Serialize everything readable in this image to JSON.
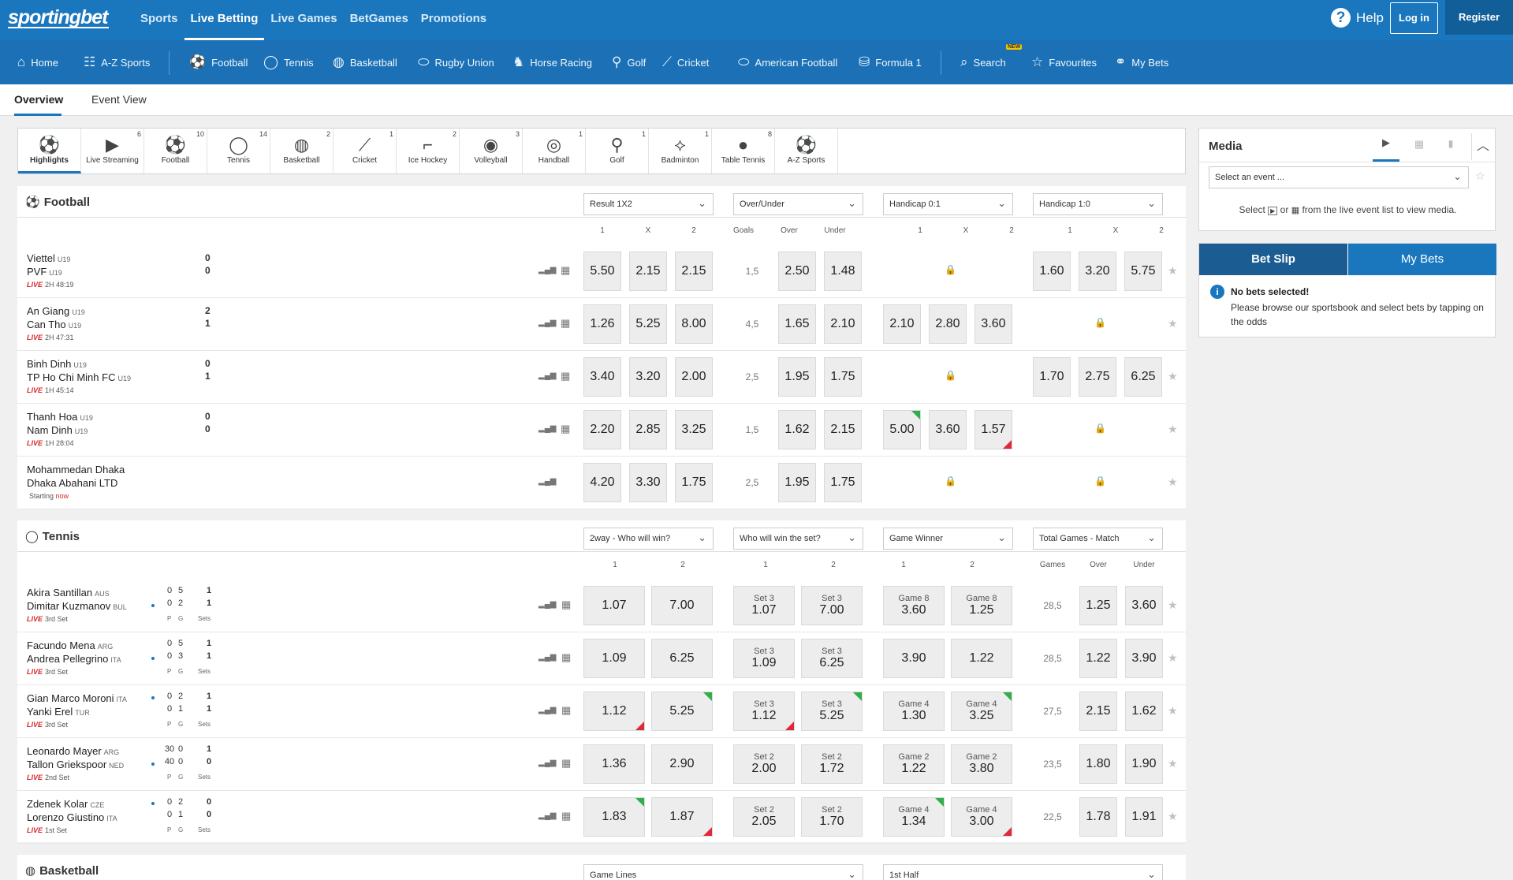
{
  "brand": "sportingbet",
  "topnav": [
    "Sports",
    "Live Betting",
    "Live Games",
    "BetGames",
    "Promotions"
  ],
  "header": {
    "help": "Help",
    "login": "Log in",
    "register": "Register"
  },
  "sportsbar": [
    {
      "label": "Home",
      "icon": "home-icon",
      "glyph": "⌂"
    },
    {
      "label": "A-Z Sports",
      "icon": "people-icon",
      "glyph": "☷"
    },
    {
      "label": "Football",
      "icon": "football-icon",
      "glyph": "⚽"
    },
    {
      "label": "Tennis",
      "icon": "tennis-icon",
      "glyph": "◯"
    },
    {
      "label": "Basketball",
      "icon": "basketball-icon",
      "glyph": "◍"
    },
    {
      "label": "Rugby Union",
      "icon": "rugby-icon",
      "glyph": "⬭"
    },
    {
      "label": "Horse Racing",
      "icon": "horse-icon",
      "glyph": "♞"
    },
    {
      "label": "Golf",
      "icon": "golf-icon",
      "glyph": "⚲"
    },
    {
      "label": "Cricket",
      "icon": "cricket-icon",
      "glyph": "⟋"
    },
    {
      "label": "American Football",
      "icon": "american-football-icon",
      "glyph": "⬭"
    },
    {
      "label": "Formula 1",
      "icon": "formula1-icon",
      "glyph": "⛁"
    },
    {
      "label": "Search",
      "icon": "search-icon",
      "glyph": "⌕"
    },
    {
      "label": "Favourites",
      "icon": "star-icon",
      "glyph": "☆"
    },
    {
      "label": "My Bets",
      "icon": "mybets-icon",
      "glyph": "⚭"
    }
  ],
  "newbadge": "NEW",
  "tabs": [
    "Overview",
    "Event View"
  ],
  "tiles": [
    {
      "label": "Highlights",
      "count": "",
      "glyph": "⚽"
    },
    {
      "label": "Live Streaming",
      "count": "6",
      "glyph": "▶"
    },
    {
      "label": "Football",
      "count": "10",
      "glyph": "⚽"
    },
    {
      "label": "Tennis",
      "count": "14",
      "glyph": "◯"
    },
    {
      "label": "Basketball",
      "count": "2",
      "glyph": "◍"
    },
    {
      "label": "Cricket",
      "count": "1",
      "glyph": "⟋"
    },
    {
      "label": "Ice Hockey",
      "count": "2",
      "glyph": "⌐"
    },
    {
      "label": "Volleyball",
      "count": "3",
      "glyph": "◉"
    },
    {
      "label": "Handball",
      "count": "1",
      "glyph": "◎"
    },
    {
      "label": "Golf",
      "count": "1",
      "glyph": "⚲"
    },
    {
      "label": "Badminton",
      "count": "1",
      "glyph": "⟡"
    },
    {
      "label": "Table Tennis",
      "count": "8",
      "glyph": "●"
    },
    {
      "label": "A-Z Sports",
      "count": "",
      "glyph": "⚽"
    }
  ],
  "football": {
    "title": "Football",
    "dropdowns": [
      "Result 1X2",
      "Over/Under",
      "Handicap 0:1",
      "Handicap 1:0"
    ],
    "colheads": [
      "1",
      "X",
      "2",
      "Goals",
      "Over",
      "Under",
      "1",
      "X",
      "2",
      "1",
      "X",
      "2"
    ],
    "rows": [
      {
        "t1": "Viettel",
        "t1s": "U19",
        "t2": "PVF",
        "t2s": "U19",
        "s1": "0",
        "s2": "0",
        "live": "LIVE",
        "time": "2H 48:19",
        "r": [
          "5.50",
          "2.15",
          "2.15"
        ],
        "goals": "1,5",
        "ou": [
          "2.50",
          "1.48"
        ],
        "h01": null,
        "h10": [
          "1.60",
          "3.20",
          "5.75"
        ],
        "tv": true
      },
      {
        "t1": "An Giang",
        "t1s": "U19",
        "t2": "Can Tho",
        "t2s": "U19",
        "s1": "2",
        "s2": "1",
        "live": "LIVE",
        "time": "2H 47:31",
        "r": [
          "1.26",
          "5.25",
          "8.00"
        ],
        "goals": "4,5",
        "ou": [
          "1.65",
          "2.10"
        ],
        "h01": [
          "2.10",
          "2.80",
          "3.60"
        ],
        "h10": null,
        "tv": true
      },
      {
        "t1": "Binh Dinh",
        "t1s": "U19",
        "t2": "TP Ho Chi Minh FC",
        "t2s": "U19",
        "s1": "0",
        "s2": "1",
        "live": "LIVE",
        "time": "1H 45:14",
        "r": [
          "3.40",
          "3.20",
          "2.00"
        ],
        "goals": "2,5",
        "ou": [
          "1.95",
          "1.75"
        ],
        "h01": null,
        "h10": [
          "1.70",
          "2.75",
          "6.25"
        ],
        "tv": true
      },
      {
        "t1": "Thanh Hoa",
        "t1s": "U19",
        "t2": "Nam Dinh",
        "t2s": "U19",
        "s1": "0",
        "s2": "0",
        "live": "LIVE",
        "time": "1H 28:04",
        "r": [
          "2.20",
          "2.85",
          "3.25"
        ],
        "goals": "1,5",
        "ou": [
          "1.62",
          "2.15"
        ],
        "h01": [
          "5.00",
          "3.60",
          "1.57"
        ],
        "h10": null,
        "tv": true
      },
      {
        "t1": "Mohammedan Dhaka",
        "t1s": "",
        "t2": "Dhaka Abahani LTD",
        "t2s": "",
        "s1": "",
        "s2": "",
        "live": "",
        "time": "Starting",
        "now": "now",
        "r": [
          "4.20",
          "3.30",
          "1.75"
        ],
        "goals": "2,5",
        "ou": [
          "1.95",
          "1.75"
        ],
        "h01": null,
        "h10": null,
        "tv": false
      }
    ]
  },
  "tennis": {
    "title": "Tennis",
    "dropdowns": [
      "2way - Who will win?",
      "Who will win the set?",
      "Game Winner",
      "Total Games - Match"
    ],
    "colheads": [
      "1",
      "2",
      "1",
      "2",
      "1",
      "2",
      "Games",
      "Over",
      "Under"
    ],
    "pgs": [
      "P",
      "G",
      "Sets"
    ],
    "rows": [
      {
        "t1": "Akira Santillan",
        "t1s": "AUS",
        "t2": "Dimitar Kuzmanov",
        "t2s": "BUL",
        "p": [
          "0",
          "0"
        ],
        "g": [
          "5",
          "2"
        ],
        "s": [
          "1",
          "1"
        ],
        "serve": 2,
        "time": "3rd Set",
        "w": [
          "1.07",
          "7.00"
        ],
        "setl": [
          "Set 3",
          "Set 3"
        ],
        "set": [
          "1.07",
          "7.00"
        ],
        "gl": [
          "Game 8",
          "Game 8"
        ],
        "gm": [
          "3.60",
          "1.25"
        ],
        "games": "28,5",
        "ou": [
          "1.25",
          "3.60"
        ]
      },
      {
        "t1": "Facundo Mena",
        "t1s": "ARG",
        "t2": "Andrea Pellegrino",
        "t2s": "ITA",
        "p": [
          "0",
          "0"
        ],
        "g": [
          "5",
          "3"
        ],
        "s": [
          "1",
          "1"
        ],
        "serve": 2,
        "time": "3rd Set",
        "w": [
          "1.09",
          "6.25"
        ],
        "setl": [
          "Set 3",
          "Set 3"
        ],
        "set": [
          "1.09",
          "6.25"
        ],
        "gl": [
          "",
          ""
        ],
        "gm": [
          "3.90",
          "1.22"
        ],
        "games": "28,5",
        "ou": [
          "1.22",
          "3.90"
        ]
      },
      {
        "t1": "Gian Marco Moroni",
        "t1s": "ITA",
        "t2": "Yanki Erel",
        "t2s": "TUR",
        "p": [
          "0",
          "0"
        ],
        "g": [
          "2",
          "1"
        ],
        "s": [
          "1",
          "1"
        ],
        "serve": 1,
        "time": "3rd Set",
        "w": [
          "1.12",
          "5.25"
        ],
        "setl": [
          "Set 3",
          "Set 3"
        ],
        "set": [
          "1.12",
          "5.25"
        ],
        "gl": [
          "Game 4",
          "Game 4"
        ],
        "gm": [
          "1.30",
          "3.25"
        ],
        "games": "27,5",
        "ou": [
          "2.15",
          "1.62"
        ]
      },
      {
        "t1": "Leonardo Mayer",
        "t1s": "ARG",
        "t2": "Tallon Griekspoor",
        "t2s": "NED",
        "p": [
          "30",
          "40"
        ],
        "g": [
          "0",
          "0"
        ],
        "s": [
          "1",
          "0"
        ],
        "serve": 2,
        "time": "2nd Set",
        "w": [
          "1.36",
          "2.90"
        ],
        "setl": [
          "Set 2",
          "Set 2"
        ],
        "set": [
          "2.00",
          "1.72"
        ],
        "gl": [
          "Game 2",
          "Game 2"
        ],
        "gm": [
          "1.22",
          "3.80"
        ],
        "games": "23,5",
        "ou": [
          "1.80",
          "1.90"
        ]
      },
      {
        "t1": "Zdenek Kolar",
        "t1s": "CZE",
        "t2": "Lorenzo Giustino",
        "t2s": "ITA",
        "p": [
          "0",
          "0"
        ],
        "g": [
          "2",
          "1"
        ],
        "s": [
          "0",
          "0"
        ],
        "serve": 1,
        "time": "1st Set",
        "w": [
          "1.83",
          "1.87"
        ],
        "setl": [
          "Set 2",
          "Set 2"
        ],
        "set": [
          "2.05",
          "1.70"
        ],
        "gl": [
          "Game 4",
          "Game 4"
        ],
        "gm": [
          "1.34",
          "3.00"
        ],
        "games": "22,5",
        "ou": [
          "1.78",
          "1.91"
        ]
      }
    ]
  },
  "basketball": {
    "title": "Basketball",
    "dropdowns": [
      "Game Lines",
      "1st Half"
    ]
  },
  "media": {
    "title": "Media",
    "select": "Select an event ...",
    "hint_a": "Select",
    "hint_b": "or",
    "hint_c": "from the live event list to view media."
  },
  "betslip": {
    "tab1": "Bet Slip",
    "tab2": "My Bets",
    "title": "No bets selected!",
    "text": "Please browse our sportsbook and select bets by tapping on the odds"
  },
  "colors": {
    "primary": "#1a77be",
    "dark": "#125e98",
    "live": "#d9262c",
    "up": "#2fae4a",
    "down": "#e0283a"
  }
}
